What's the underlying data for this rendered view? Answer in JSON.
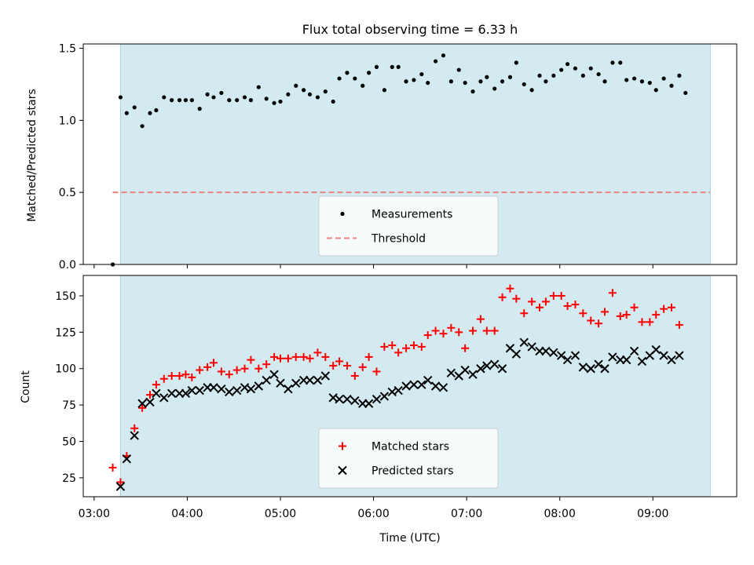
{
  "figure": {
    "title": "Flux total observing time = 6.33 h",
    "shade_color": "#d3eaf0",
    "shade_range": [
      "03:17",
      "09:37"
    ]
  },
  "chart_data": [
    {
      "type": "scatter",
      "ylabel": "Matched/Predicted stars",
      "xlabel": "",
      "x_tick_labels": [],
      "ylim": [
        0,
        1.53
      ],
      "yticks": [
        "0.0",
        "0.5",
        "1.0",
        "1.5"
      ],
      "xlim": [
        "02:53",
        "09:54"
      ],
      "legend_position": "bottom-center",
      "threshold": {
        "name": "Threshold",
        "value": 0.5,
        "from": "03:12",
        "to": "09:37",
        "color": "#f08080",
        "style": "dashed"
      },
      "series": [
        {
          "name": "Measurements",
          "color": "#000000",
          "marker": "dot",
          "points": [
            [
              "03:12",
              0.0
            ],
            [
              "03:17",
              1.16
            ],
            [
              "03:21",
              1.05
            ],
            [
              "03:26",
              1.09
            ],
            [
              "03:31",
              0.96
            ],
            [
              "03:36",
              1.05
            ],
            [
              "03:40",
              1.07
            ],
            [
              "03:45",
              1.16
            ],
            [
              "03:50",
              1.14
            ],
            [
              "03:55",
              1.14
            ],
            [
              "03:59",
              1.14
            ],
            [
              "04:03",
              1.14
            ],
            [
              "04:08",
              1.08
            ],
            [
              "04:13",
              1.18
            ],
            [
              "04:17",
              1.16
            ],
            [
              "04:22",
              1.19
            ],
            [
              "04:27",
              1.14
            ],
            [
              "04:32",
              1.14
            ],
            [
              "04:37",
              1.16
            ],
            [
              "04:41",
              1.14
            ],
            [
              "04:46",
              1.23
            ],
            [
              "04:51",
              1.15
            ],
            [
              "04:56",
              1.12
            ],
            [
              "05:00",
              1.13
            ],
            [
              "05:05",
              1.18
            ],
            [
              "05:10",
              1.24
            ],
            [
              "05:15",
              1.21
            ],
            [
              "05:19",
              1.18
            ],
            [
              "05:24",
              1.16
            ],
            [
              "05:29",
              1.2
            ],
            [
              "05:34",
              1.13
            ],
            [
              "05:38",
              1.29
            ],
            [
              "05:43",
              1.33
            ],
            [
              "05:48",
              1.29
            ],
            [
              "05:53",
              1.24
            ],
            [
              "05:57",
              1.33
            ],
            [
              "06:02",
              1.37
            ],
            [
              "06:07",
              1.21
            ],
            [
              "06:12",
              1.37
            ],
            [
              "06:16",
              1.37
            ],
            [
              "06:21",
              1.27
            ],
            [
              "06:26",
              1.28
            ],
            [
              "06:31",
              1.32
            ],
            [
              "06:35",
              1.26
            ],
            [
              "06:40",
              1.41
            ],
            [
              "06:45",
              1.45
            ],
            [
              "06:50",
              1.27
            ],
            [
              "06:55",
              1.35
            ],
            [
              "06:59",
              1.26
            ],
            [
              "07:04",
              1.2
            ],
            [
              "07:09",
              1.27
            ],
            [
              "07:13",
              1.3
            ],
            [
              "07:18",
              1.22
            ],
            [
              "07:23",
              1.27
            ],
            [
              "07:28",
              1.3
            ],
            [
              "07:32",
              1.4
            ],
            [
              "07:37",
              1.25
            ],
            [
              "07:42",
              1.21
            ],
            [
              "07:47",
              1.31
            ],
            [
              "07:51",
              1.27
            ],
            [
              "07:56",
              1.31
            ],
            [
              "08:01",
              1.35
            ],
            [
              "08:05",
              1.39
            ],
            [
              "08:10",
              1.36
            ],
            [
              "08:15",
              1.31
            ],
            [
              "08:20",
              1.36
            ],
            [
              "08:25",
              1.32
            ],
            [
              "08:29",
              1.27
            ],
            [
              "08:34",
              1.4
            ],
            [
              "08:39",
              1.4
            ],
            [
              "08:43",
              1.28
            ],
            [
              "08:48",
              1.29
            ],
            [
              "08:53",
              1.27
            ],
            [
              "08:58",
              1.26
            ],
            [
              "09:02",
              1.21
            ],
            [
              "09:07",
              1.29
            ],
            [
              "09:12",
              1.24
            ],
            [
              "09:17",
              1.31
            ],
            [
              "09:21",
              1.19
            ]
          ]
        }
      ]
    },
    {
      "type": "scatter",
      "ylabel": "Count",
      "xlabel": "Time (UTC)",
      "ylim": [
        12,
        164
      ],
      "yticks": [
        "25",
        "50",
        "75",
        "100",
        "125",
        "150"
      ],
      "xlim": [
        "02:53",
        "09:54"
      ],
      "x_tick_labels": [
        "03:00",
        "04:00",
        "05:00",
        "06:00",
        "07:00",
        "08:00",
        "09:00"
      ],
      "legend_position": "bottom-center",
      "series": [
        {
          "name": "Matched stars",
          "color": "#ff0000",
          "marker": "plus",
          "points": [
            [
              "03:12",
              32
            ],
            [
              "03:17",
              22
            ],
            [
              "03:21",
              40
            ],
            [
              "03:26",
              59
            ],
            [
              "03:31",
              73
            ],
            [
              "03:36",
              82
            ],
            [
              "03:40",
              89
            ],
            [
              "03:45",
              93
            ],
            [
              "03:50",
              95
            ],
            [
              "03:55",
              95
            ],
            [
              "03:59",
              96
            ],
            [
              "04:03",
              94
            ],
            [
              "04:08",
              99
            ],
            [
              "04:13",
              101
            ],
            [
              "04:17",
              104
            ],
            [
              "04:22",
              98
            ],
            [
              "04:27",
              96
            ],
            [
              "04:32",
              99
            ],
            [
              "04:37",
              100
            ],
            [
              "04:41",
              106
            ],
            [
              "04:46",
              100
            ],
            [
              "04:51",
              103
            ],
            [
              "04:56",
              108
            ],
            [
              "05:00",
              107
            ],
            [
              "05:05",
              107
            ],
            [
              "05:10",
              108
            ],
            [
              "05:15",
              108
            ],
            [
              "05:19",
              107
            ],
            [
              "05:24",
              111
            ],
            [
              "05:29",
              108
            ],
            [
              "05:34",
              102
            ],
            [
              "05:38",
              105
            ],
            [
              "05:43",
              102
            ],
            [
              "05:48",
              95
            ],
            [
              "05:53",
              101
            ],
            [
              "05:57",
              108
            ],
            [
              "06:02",
              98
            ],
            [
              "06:07",
              115
            ],
            [
              "06:12",
              116
            ],
            [
              "06:16",
              111
            ],
            [
              "06:21",
              114
            ],
            [
              "06:26",
              116
            ],
            [
              "06:31",
              115
            ],
            [
              "06:35",
              123
            ],
            [
              "06:40",
              126
            ],
            [
              "06:45",
              124
            ],
            [
              "06:50",
              128
            ],
            [
              "06:55",
              125
            ],
            [
              "06:59",
              114
            ],
            [
              "07:04",
              126
            ],
            [
              "07:09",
              134
            ],
            [
              "07:13",
              126
            ],
            [
              "07:18",
              126
            ],
            [
              "07:23",
              149
            ],
            [
              "07:28",
              155
            ],
            [
              "07:32",
              148
            ],
            [
              "07:37",
              138
            ],
            [
              "07:42",
              146
            ],
            [
              "07:47",
              142
            ],
            [
              "07:51",
              146
            ],
            [
              "07:56",
              150
            ],
            [
              "08:01",
              150
            ],
            [
              "08:05",
              143
            ],
            [
              "08:10",
              144
            ],
            [
              "08:15",
              138
            ],
            [
              "08:20",
              133
            ],
            [
              "08:25",
              131
            ],
            [
              "08:29",
              139
            ],
            [
              "08:34",
              152
            ],
            [
              "08:39",
              136
            ],
            [
              "08:43",
              137
            ],
            [
              "08:48",
              142
            ],
            [
              "08:53",
              132
            ],
            [
              "08:58",
              132
            ],
            [
              "09:02",
              137
            ],
            [
              "09:07",
              141
            ],
            [
              "09:12",
              142
            ],
            [
              "09:17",
              130
            ]
          ]
        },
        {
          "name": "Predicted stars",
          "color": "#000000",
          "marker": "x",
          "points": [
            [
              "03:17",
              19
            ],
            [
              "03:21",
              38
            ],
            [
              "03:26",
              54
            ],
            [
              "03:31",
              76
            ],
            [
              "03:36",
              77
            ],
            [
              "03:40",
              83
            ],
            [
              "03:45",
              80
            ],
            [
              "03:50",
              83
            ],
            [
              "03:55",
              83
            ],
            [
              "03:59",
              83
            ],
            [
              "04:03",
              85
            ],
            [
              "04:08",
              85
            ],
            [
              "04:13",
              87
            ],
            [
              "04:17",
              87
            ],
            [
              "04:22",
              86
            ],
            [
              "04:27",
              84
            ],
            [
              "04:32",
              85
            ],
            [
              "04:37",
              87
            ],
            [
              "04:41",
              86
            ],
            [
              "04:46",
              88
            ],
            [
              "04:51",
              92
            ],
            [
              "04:56",
              96
            ],
            [
              "05:00",
              90
            ],
            [
              "05:05",
              86
            ],
            [
              "05:10",
              90
            ],
            [
              "05:15",
              92
            ],
            [
              "05:19",
              92
            ],
            [
              "05:24",
              92
            ],
            [
              "05:29",
              95
            ],
            [
              "05:34",
              80
            ],
            [
              "05:38",
              79
            ],
            [
              "05:43",
              79
            ],
            [
              "05:48",
              78
            ],
            [
              "05:53",
              76
            ],
            [
              "05:57",
              76
            ],
            [
              "06:02",
              79
            ],
            [
              "06:07",
              81
            ],
            [
              "06:12",
              84
            ],
            [
              "06:16",
              85
            ],
            [
              "06:21",
              88
            ],
            [
              "06:26",
              89
            ],
            [
              "06:31",
              89
            ],
            [
              "06:35",
              92
            ],
            [
              "06:40",
              88
            ],
            [
              "06:45",
              87
            ],
            [
              "06:50",
              97
            ],
            [
              "06:55",
              95
            ],
            [
              "06:59",
              99
            ],
            [
              "07:04",
              96
            ],
            [
              "07:09",
              100
            ],
            [
              "07:13",
              102
            ],
            [
              "07:18",
              103
            ],
            [
              "07:23",
              100
            ],
            [
              "07:28",
              114
            ],
            [
              "07:32",
              110
            ],
            [
              "07:37",
              118
            ],
            [
              "07:42",
              115
            ],
            [
              "07:47",
              112
            ],
            [
              "07:51",
              112
            ],
            [
              "07:56",
              111
            ],
            [
              "08:01",
              109
            ],
            [
              "08:05",
              106
            ],
            [
              "08:10",
              109
            ],
            [
              "08:15",
              101
            ],
            [
              "08:20",
              100
            ],
            [
              "08:25",
              103
            ],
            [
              "08:29",
              100
            ],
            [
              "08:34",
              108
            ],
            [
              "08:39",
              106
            ],
            [
              "08:43",
              106
            ],
            [
              "08:48",
              112
            ],
            [
              "08:53",
              105
            ],
            [
              "08:58",
              109
            ],
            [
              "09:02",
              113
            ],
            [
              "09:07",
              109
            ],
            [
              "09:12",
              106
            ],
            [
              "09:17",
              109
            ]
          ]
        }
      ]
    }
  ]
}
